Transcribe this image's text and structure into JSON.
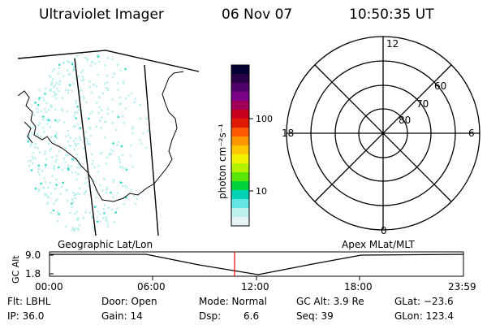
{
  "header": {
    "title": "Ultraviolet Imager",
    "date": "06 Nov 07",
    "time": "10:50:35 UT"
  },
  "colorbar": {
    "unit_label": "photon cm⁻²s⁻¹",
    "ticks": [
      {
        "label": "100",
        "value": 100
      },
      {
        "label": "10",
        "value": 10
      }
    ],
    "colors": [
      "#000033",
      "#2a0044",
      "#50006a",
      "#7a0088",
      "#a0005a",
      "#c8001e",
      "#e01a00",
      "#ff5a00",
      "#ff9600",
      "#ffc800",
      "#f0f000",
      "#b4f000",
      "#5ae600",
      "#00d23c",
      "#00d2b4",
      "#64e6e6",
      "#bef0f0",
      "#e6f5f5"
    ]
  },
  "polar_plot": {
    "labels": {
      "top": "12",
      "bottom": "0",
      "left": "18",
      "right": "6"
    },
    "rings": [
      {
        "label": "60"
      },
      {
        "label": "70"
      },
      {
        "label": "80"
      }
    ]
  },
  "altitude_panel": {
    "left_title": "Geographic Lat/Lon",
    "right_title": "Apex MLat/MLT",
    "y_axis_label": "GC Alt",
    "y_ticks": [
      "9.0",
      "1.8"
    ],
    "x_ticks": [
      "00:00",
      "06:00",
      "12:00",
      "18:00",
      "23:59"
    ]
  },
  "info": {
    "flt": "Flt: LBHL",
    "ip": "IP: 36.0",
    "door": "Door: Open",
    "gain": "Gain: 14",
    "mode": "Mode: Normal",
    "dsp_label": "Dsp:",
    "dsp_value": "6.6",
    "gc_alt": "GC Alt: 3.9 Re",
    "seq": "Seq: 39",
    "glat": "GLat: −23.6",
    "glon": "GLon: 123.4"
  },
  "colors": {
    "cursor": "#ff0000",
    "emission_cyan": "#3cd8c8",
    "emission_light": "#bdeff0"
  }
}
